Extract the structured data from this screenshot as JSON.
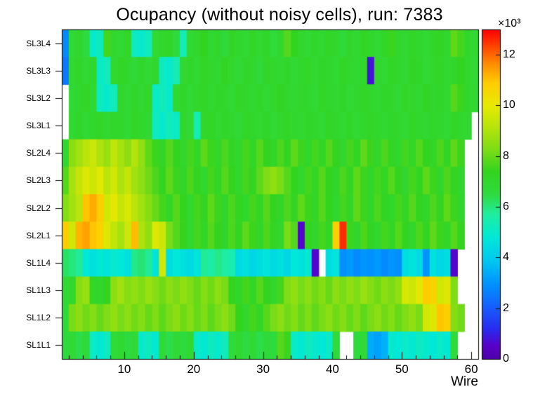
{
  "chart_data": {
    "type": "heatmap",
    "title": "Ocupancy (without noisy cells), run: 7383",
    "xlabel": "Wire",
    "values_unit": "counts ×10³",
    "x_ticks": [
      10,
      20,
      30,
      40,
      50,
      60
    ],
    "x_minor_tick_step": 2,
    "wires": {
      "min": 1,
      "max": 60
    },
    "zmin": 0,
    "zmax": 13,
    "frame_color": "#000000",
    "background_color": "#ffffff",
    "colorbar": {
      "ticks": [
        0,
        2,
        4,
        6,
        8,
        10,
        12
      ],
      "multiplier": "×10³"
    },
    "palette": [
      {
        "t": 0.0,
        "c": "#4c00a8"
      },
      {
        "t": 0.04,
        "c": "#5a00c8"
      },
      {
        "t": 0.09,
        "c": "#2a2aee"
      },
      {
        "t": 0.16,
        "c": "#1560ff"
      },
      {
        "t": 0.23,
        "c": "#0094ff"
      },
      {
        "t": 0.3,
        "c": "#00c8f0"
      },
      {
        "t": 0.37,
        "c": "#00e8d8"
      },
      {
        "t": 0.44,
        "c": "#20eda0"
      },
      {
        "t": 0.5,
        "c": "#2edb3f"
      },
      {
        "t": 0.57,
        "c": "#33d41f"
      },
      {
        "t": 0.63,
        "c": "#77dc16"
      },
      {
        "t": 0.7,
        "c": "#b4e30c"
      },
      {
        "t": 0.77,
        "c": "#e8ea00"
      },
      {
        "t": 0.84,
        "c": "#ffcc00"
      },
      {
        "t": 0.9,
        "c": "#ff8800"
      },
      {
        "t": 1.0,
        "c": "#ff0000"
      }
    ],
    "series": [
      {
        "row": "SL3L4",
        "values": [
          2.8,
          6.8,
          7.0,
          6.5,
          5.0,
          5.2,
          7.6,
          7.0,
          6.8,
          7.2,
          5.2,
          5.0,
          5.3,
          6.8,
          7.0,
          7.2,
          6.6,
          5.4,
          6.8,
          7.0,
          7.4,
          6.9,
          7.1,
          6.7,
          7.3,
          7.0,
          6.8,
          7.2,
          6.9,
          7.1,
          6.6,
          7.0,
          7.8,
          7.4,
          7.0,
          6.8,
          7.1,
          6.9,
          7.2,
          7.0,
          6.7,
          7.1,
          6.9,
          7.3,
          7.0,
          6.8,
          7.2,
          7.5,
          7.0,
          6.9,
          7.2,
          7.0,
          6.8,
          7.1,
          7.3,
          7.0,
          7.9,
          7.6,
          7.1,
          6.9
        ]
      },
      {
        "row": "SL3L3",
        "values": [
          2.5,
          6.9,
          7.1,
          6.8,
          7.0,
          5.1,
          5.3,
          6.9,
          7.2,
          7.0,
          6.7,
          7.1,
          6.8,
          7.0,
          5.2,
          5.0,
          5.4,
          6.9,
          7.1,
          6.8,
          7.2,
          7.0,
          6.9,
          7.3,
          7.0,
          6.8,
          7.1,
          7.0,
          6.7,
          7.2,
          7.0,
          6.9,
          7.1,
          6.8,
          7.0,
          7.2,
          6.9,
          7.1,
          7.0,
          6.8,
          7.2,
          7.0,
          6.9,
          7.1,
          0.8,
          7.0,
          6.8,
          7.2,
          7.0,
          6.9,
          7.3,
          7.1,
          6.8,
          7.0,
          7.2,
          6.9,
          7.1,
          7.4,
          7.0,
          6.8
        ]
      },
      {
        "row": "SL3L2",
        "values": [
          null,
          6.8,
          7.0,
          7.2,
          6.9,
          5.2,
          5.0,
          5.3,
          7.0,
          6.8,
          7.1,
          6.9,
          7.2,
          5.1,
          5.3,
          5.0,
          6.9,
          7.1,
          6.8,
          7.0,
          7.2,
          6.9,
          7.1,
          7.0,
          6.8,
          7.2,
          7.0,
          6.9,
          7.1,
          6.8,
          7.0,
          7.3,
          7.0,
          6.9,
          7.1,
          7.0,
          6.8,
          7.2,
          7.0,
          6.9,
          7.1,
          6.8,
          7.0,
          7.2,
          7.0,
          6.9,
          7.1,
          7.0,
          6.8,
          7.2,
          7.0,
          6.9,
          7.3,
          7.0,
          7.1,
          6.9,
          7.8,
          7.5,
          7.1,
          6.9
        ]
      },
      {
        "row": "SL3L1",
        "values": [
          null,
          6.9,
          7.1,
          6.8,
          7.0,
          7.2,
          6.9,
          7.1,
          7.0,
          6.8,
          7.2,
          7.0,
          6.9,
          5.2,
          5.0,
          5.3,
          5.1,
          7.0,
          6.8,
          5.4,
          7.0,
          7.2,
          6.9,
          7.1,
          7.0,
          6.8,
          7.2,
          7.0,
          6.9,
          7.1,
          6.8,
          7.0,
          7.2,
          7.0,
          6.9,
          7.1,
          7.0,
          6.8,
          7.2,
          7.0,
          6.9,
          7.1,
          6.8,
          7.0,
          7.2,
          7.0,
          6.9,
          7.1,
          7.0,
          6.8,
          7.2,
          7.0,
          6.9,
          7.1,
          7.0,
          6.8,
          7.2,
          7.0,
          6.9,
          null
        ]
      },
      {
        "row": "SL2L4",
        "values": [
          6.9,
          8.5,
          8.8,
          9.2,
          9.5,
          9.0,
          8.7,
          9.3,
          8.9,
          8.5,
          9.1,
          8.6,
          7.9,
          7.5,
          7.2,
          7.8,
          7.4,
          7.0,
          7.6,
          7.2,
          7.9,
          7.5,
          7.1,
          7.7,
          7.3,
          7.0,
          7.6,
          7.2,
          7.8,
          7.4,
          7.1,
          7.7,
          7.3,
          7.9,
          7.5,
          7.1,
          7.6,
          7.2,
          7.8,
          7.4,
          7.0,
          7.6,
          7.3,
          7.9,
          7.5,
          7.1,
          7.7,
          7.3,
          7.0,
          7.6,
          7.2,
          7.8,
          7.4,
          7.1,
          7.7,
          7.3,
          7.9,
          7.5,
          null,
          null
        ]
      },
      {
        "row": "SL2L3",
        "values": [
          7.8,
          8.9,
          9.4,
          9.8,
          9.5,
          9.9,
          9.2,
          9.6,
          9.0,
          9.4,
          8.8,
          8.5,
          8.1,
          7.7,
          7.3,
          7.9,
          7.5,
          7.1,
          7.7,
          7.3,
          7.0,
          7.6,
          7.2,
          7.8,
          7.4,
          7.0,
          7.6,
          7.3,
          7.9,
          8.3,
          8.6,
          8.2,
          7.8,
          7.4,
          7.0,
          7.6,
          7.2,
          7.8,
          7.4,
          7.1,
          7.7,
          7.3,
          7.9,
          7.5,
          7.1,
          7.6,
          7.2,
          7.8,
          7.4,
          7.0,
          7.6,
          7.3,
          7.9,
          7.5,
          7.1,
          7.7,
          7.3,
          7.0,
          null,
          null
        ]
      },
      {
        "row": "SL2L2",
        "values": [
          8.4,
          8.8,
          9.2,
          11.0,
          11.3,
          10.9,
          9.6,
          9.9,
          9.4,
          9.7,
          9.2,
          8.8,
          8.4,
          8.0,
          7.6,
          7.2,
          7.8,
          7.4,
          7.0,
          7.6,
          7.3,
          7.9,
          7.5,
          7.1,
          7.7,
          7.3,
          7.0,
          7.6,
          7.2,
          7.8,
          7.4,
          7.1,
          7.7,
          7.3,
          7.9,
          7.5,
          7.2,
          7.8,
          7.4,
          7.0,
          7.6,
          7.2,
          7.9,
          7.5,
          7.1,
          7.7,
          7.3,
          7.0,
          7.6,
          7.2,
          7.8,
          7.4,
          7.1,
          7.7,
          7.3,
          7.9,
          7.5,
          7.1,
          null,
          null
        ]
      },
      {
        "row": "SL2L1",
        "values": [
          10.9,
          9.6,
          11.2,
          11.4,
          11.0,
          10.7,
          9.8,
          9.3,
          8.9,
          9.5,
          11.1,
          9.0,
          8.6,
          9.8,
          9.5,
          8.2,
          7.8,
          7.4,
          7.0,
          7.6,
          7.2,
          7.8,
          7.4,
          7.1,
          7.7,
          7.3,
          7.9,
          7.5,
          7.1,
          7.7,
          7.3,
          7.0,
          8.2,
          7.8,
          0.6,
          7.4,
          7.0,
          7.6,
          7.2,
          10.8,
          12.6,
          7.5,
          7.1,
          7.7,
          7.3,
          7.0,
          7.6,
          7.2,
          7.8,
          7.4,
          7.1,
          7.7,
          7.3,
          7.9,
          7.5,
          7.2,
          7.8,
          7.4,
          null,
          null
        ]
      },
      {
        "row": "SL1L4",
        "values": [
          6.2,
          6.0,
          5.8,
          4.8,
          4.6,
          4.9,
          4.7,
          5.0,
          4.8,
          4.6,
          5.9,
          6.1,
          5.8,
          4.7,
          9.6,
          4.5,
          4.8,
          4.6,
          4.4,
          4.7,
          5.8,
          5.6,
          5.9,
          5.7,
          5.5,
          4.4,
          4.6,
          4.3,
          4.5,
          4.7,
          4.4,
          4.6,
          4.3,
          4.8,
          4.6,
          4.9,
          0.6,
          null,
          4.5,
          4.7,
          2.9,
          3.1,
          2.8,
          3.0,
          2.9,
          3.1,
          2.8,
          3.0,
          2.9,
          4.5,
          4.7,
          4.4,
          3.0,
          4.6,
          4.3,
          4.5,
          0.6,
          null,
          null,
          null
        ]
      },
      {
        "row": "SL1L3",
        "values": [
          6.8,
          7.0,
          8.4,
          8.7,
          7.2,
          7.0,
          7.4,
          8.5,
          8.8,
          8.4,
          8.6,
          8.3,
          8.7,
          8.4,
          8.1,
          8.5,
          8.2,
          8.6,
          8.3,
          8.0,
          8.4,
          8.1,
          8.5,
          8.2,
          7.4,
          7.1,
          7.6,
          7.2,
          7.8,
          7.4,
          7.0,
          7.6,
          8.3,
          8.6,
          8.2,
          8.5,
          8.1,
          8.4,
          8.0,
          8.5,
          8.2,
          8.6,
          8.3,
          8.7,
          8.4,
          8.1,
          8.5,
          8.2,
          8.6,
          9.7,
          9.5,
          9.9,
          10.9,
          10.7,
          9.6,
          9.8,
          8.3,
          null,
          null,
          null
        ]
      },
      {
        "row": "SL1L2",
        "values": [
          6.6,
          8.2,
          8.5,
          8.1,
          8.4,
          8.0,
          8.3,
          8.6,
          8.2,
          8.5,
          8.1,
          8.4,
          8.0,
          8.3,
          7.9,
          8.2,
          8.5,
          8.1,
          8.4,
          8.0,
          8.3,
          7.9,
          8.2,
          8.5,
          8.1,
          7.4,
          7.0,
          7.6,
          7.2,
          7.8,
          8.2,
          8.5,
          8.1,
          8.4,
          8.0,
          8.3,
          7.9,
          8.2,
          8.5,
          8.1,
          8.4,
          8.0,
          8.3,
          7.9,
          8.2,
          8.5,
          8.1,
          8.4,
          8.0,
          8.3,
          8.6,
          8.2,
          9.6,
          9.8,
          11.0,
          10.8,
          8.4,
          8.1,
          null,
          null
        ]
      },
      {
        "row": "SL1L1",
        "values": [
          6.5,
          6.8,
          6.4,
          6.7,
          5.1,
          4.9,
          5.2,
          6.6,
          6.9,
          6.5,
          6.8,
          5.0,
          5.2,
          4.9,
          6.7,
          6.4,
          6.8,
          6.5,
          6.9,
          5.1,
          4.9,
          5.2,
          5.0,
          5.3,
          6.6,
          6.9,
          6.5,
          6.8,
          6.4,
          6.7,
          6.5,
          7.8,
          7.5,
          5.1,
          4.9,
          5.2,
          5.0,
          4.8,
          5.1,
          6.6,
          null,
          null,
          6.5,
          6.8,
          3.4,
          3.2,
          3.5,
          5.0,
          4.8,
          5.1,
          4.9,
          5.2,
          5.0,
          4.8,
          5.1,
          4.9,
          6.6,
          null,
          null,
          null
        ]
      }
    ]
  }
}
